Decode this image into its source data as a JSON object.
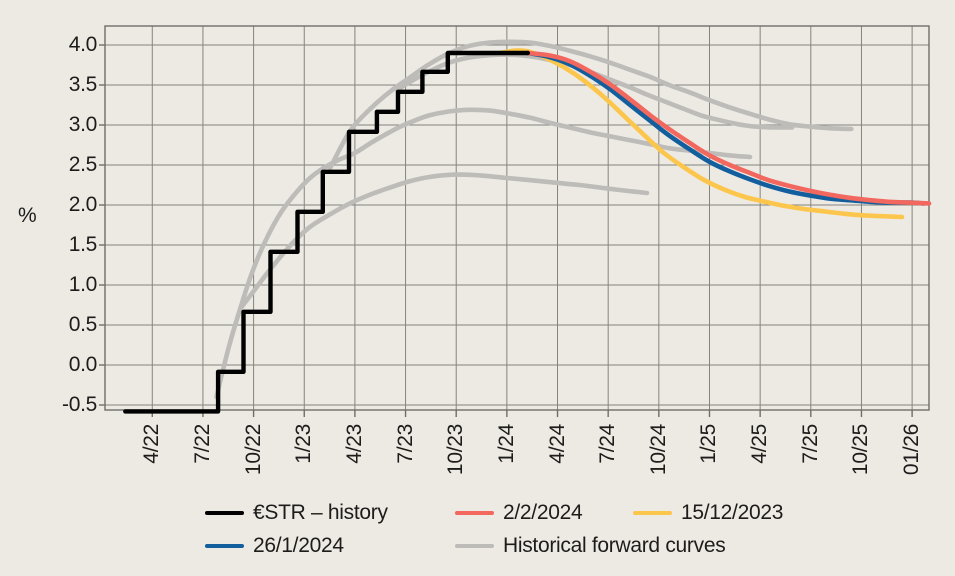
{
  "chart_data": {
    "type": "line",
    "title": "",
    "background_color": "#edeae4",
    "grid_color": "#84837d",
    "border_color": "#6f6e69",
    "grid": true,
    "axes": {
      "x": {
        "range": [
          0.2,
          49.0
        ],
        "unit_note": "months since Jan 2022, quarterly ticks",
        "ticks": [
          {
            "pos": 3,
            "label": "4/22"
          },
          {
            "pos": 6,
            "label": "7/22"
          },
          {
            "pos": 9,
            "label": "10/22"
          },
          {
            "pos": 12,
            "label": "1/23"
          },
          {
            "pos": 15,
            "label": "4/23"
          },
          {
            "pos": 18,
            "label": "7/23"
          },
          {
            "pos": 21,
            "label": "10/23"
          },
          {
            "pos": 24,
            "label": "1/24"
          },
          {
            "pos": 27,
            "label": "4/24"
          },
          {
            "pos": 30,
            "label": "7/24"
          },
          {
            "pos": 33,
            "label": "10/24"
          },
          {
            "pos": 36,
            "label": "1/25"
          },
          {
            "pos": 39,
            "label": "4/25"
          },
          {
            "pos": 42,
            "label": "7/25"
          },
          {
            "pos": 45,
            "label": "10/25"
          },
          {
            "pos": 48,
            "label": "01/26"
          }
        ]
      },
      "y": {
        "range": [
          -0.5625,
          4.2375
        ],
        "unit_label": "%",
        "ticks": [
          {
            "pos": 4.0,
            "label": "4.0"
          },
          {
            "pos": 3.5,
            "label": "3.5"
          },
          {
            "pos": 3.0,
            "label": "3.0"
          },
          {
            "pos": 2.5,
            "label": "2.5"
          },
          {
            "pos": 2.0,
            "label": "2.0"
          },
          {
            "pos": 1.5,
            "label": "1.5"
          },
          {
            "pos": 1.0,
            "label": "1.0"
          },
          {
            "pos": 0.5,
            "label": "0.5"
          },
          {
            "pos": 0.0,
            "label": "0.0"
          },
          {
            "pos": -0.5,
            "label": "-0.5"
          }
        ]
      }
    },
    "series": [
      {
        "name": "Historical forward curve 1",
        "color": "#bdbcb9",
        "stroke_width": 4.6,
        "smooth": true,
        "x": [
          8.2,
          9.1,
          10.0,
          11.2,
          12.3,
          13.5,
          14.7,
          15.9,
          17.1,
          18.3,
          19.4,
          20.9,
          22.4,
          23.9,
          25.4,
          26.8,
          28.3,
          29.8,
          31.0,
          32.3
        ],
        "y": [
          0.7,
          0.95,
          1.2,
          1.5,
          1.72,
          1.88,
          2.02,
          2.13,
          2.22,
          2.3,
          2.35,
          2.38,
          2.37,
          2.34,
          2.31,
          2.28,
          2.25,
          2.21,
          2.18,
          2.15
        ]
      },
      {
        "name": "Historical forward curve 2",
        "color": "#bdbcb9",
        "stroke_width": 4.6,
        "smooth": true,
        "x": [
          6.8,
          7.5,
          8.2,
          8.9,
          9.7,
          10.6,
          11.5,
          12.3,
          13.2,
          14.1,
          15.0,
          15.9,
          16.8,
          17.7,
          18.6,
          19.4,
          20.6,
          21.8,
          23.0,
          24.2,
          25.4,
          26.5,
          27.7,
          28.9,
          30.1,
          31.3,
          32.5,
          33.6,
          34.8,
          36.0,
          37.2,
          38.4
        ],
        "y": [
          -0.4,
          0.2,
          0.7,
          1.15,
          1.55,
          1.9,
          2.15,
          2.33,
          2.47,
          2.57,
          2.65,
          2.77,
          2.88,
          2.98,
          3.06,
          3.12,
          3.17,
          3.19,
          3.18,
          3.14,
          3.09,
          3.03,
          2.97,
          2.91,
          2.86,
          2.81,
          2.76,
          2.71,
          2.68,
          2.65,
          2.62,
          2.6
        ]
      },
      {
        "name": "Historical forward curve 3",
        "color": "#bdbcb9",
        "stroke_width": 4.6,
        "smooth": true,
        "x": [
          13.5,
          14.7,
          15.9,
          17.1,
          18.3,
          19.4,
          20.6,
          21.8,
          23.0,
          24.2,
          25.4,
          26.5,
          27.7,
          28.9,
          30.1,
          31.3,
          32.5,
          33.6,
          34.8,
          36.0,
          37.2,
          38.4,
          39.5,
          40.7,
          41.9,
          43.1,
          44.4
        ],
        "y": [
          2.45,
          2.92,
          3.2,
          3.42,
          3.6,
          3.76,
          3.9,
          3.99,
          4.03,
          4.04,
          4.03,
          3.99,
          3.93,
          3.86,
          3.78,
          3.69,
          3.6,
          3.5,
          3.41,
          3.31,
          3.22,
          3.14,
          3.07,
          3.01,
          2.98,
          2.96,
          2.95
        ]
      },
      {
        "name": "Historical forward curve 4",
        "color": "#bdbcb9",
        "stroke_width": 4.6,
        "smooth": true,
        "x": [
          17.5,
          18.6,
          19.6,
          20.6,
          21.7,
          22.8,
          23.8,
          24.9,
          25.9,
          27.0,
          28.1,
          29.1,
          30.2,
          31.3,
          32.3,
          33.4,
          34.5,
          35.5,
          36.6,
          37.7,
          38.7,
          39.8,
          40.9
        ],
        "y": [
          3.44,
          3.58,
          3.69,
          3.78,
          3.84,
          3.87,
          3.88,
          3.87,
          3.84,
          3.79,
          3.73,
          3.65,
          3.56,
          3.47,
          3.38,
          3.29,
          3.2,
          3.12,
          3.06,
          3.01,
          2.98,
          2.97,
          2.97
        ]
      },
      {
        "name": "15/12/2023",
        "color": "#fcc64d",
        "stroke_width": 4.6,
        "smooth": true,
        "x": [
          23.6,
          24.5,
          25.24,
          26.2,
          27.4,
          28.6,
          29.8,
          31.0,
          32.2,
          33.3,
          34.5,
          35.7,
          36.9,
          38.1,
          39.3,
          40.4,
          41.6,
          42.8,
          44.0,
          45.2,
          46.3,
          47.4
        ],
        "y": [
          3.9,
          3.93,
          3.92,
          3.85,
          3.72,
          3.55,
          3.34,
          3.1,
          2.86,
          2.65,
          2.47,
          2.31,
          2.19,
          2.1,
          2.04,
          1.99,
          1.95,
          1.92,
          1.89,
          1.87,
          1.86,
          1.85
        ]
      },
      {
        "name": "26/1/2024",
        "color": "#135f9e",
        "stroke_width": 4.6,
        "smooth": true,
        "x": [
          25.24,
          26.5,
          27.7,
          28.9,
          30.1,
          31.3,
          32.5,
          33.6,
          34.8,
          36.0,
          37.2,
          38.4,
          39.5,
          40.7,
          41.9,
          43.1,
          44.3,
          45.5,
          46.6,
          47.8,
          48.7
        ],
        "y": [
          3.9,
          3.85,
          3.76,
          3.62,
          3.45,
          3.25,
          3.05,
          2.87,
          2.7,
          2.54,
          2.42,
          2.32,
          2.24,
          2.17,
          2.12,
          2.08,
          2.06,
          2.04,
          2.03,
          2.03,
          2.02
        ]
      },
      {
        "name": "2/2/2024",
        "color": "#f2675e",
        "stroke_width": 4.6,
        "smooth": true,
        "x": [
          25.24,
          26.5,
          27.7,
          28.9,
          30.1,
          31.3,
          32.5,
          33.6,
          34.8,
          36.0,
          37.2,
          38.4,
          39.5,
          40.7,
          41.9,
          43.1,
          44.3,
          45.5,
          46.6,
          47.8,
          49.0
        ],
        "y": [
          3.9,
          3.87,
          3.8,
          3.67,
          3.51,
          3.32,
          3.12,
          2.95,
          2.78,
          2.62,
          2.5,
          2.4,
          2.31,
          2.24,
          2.18,
          2.13,
          2.09,
          2.06,
          2.04,
          2.03,
          2.02
        ]
      },
      {
        "name": "€STR – history",
        "color": "#000000",
        "stroke_width": 4.4,
        "smooth": false,
        "x": [
          1.4,
          6.9,
          6.9,
          8.4,
          8.4,
          10.0,
          10.0,
          11.6,
          11.6,
          13.1,
          13.1,
          14.65,
          14.65,
          16.3,
          16.3,
          17.55,
          17.55,
          19.0,
          19.0,
          20.5,
          20.5,
          25.24
        ],
        "y": [
          -0.58,
          -0.58,
          -0.085,
          -0.085,
          0.665,
          0.665,
          1.415,
          1.415,
          1.915,
          1.915,
          2.415,
          2.415,
          2.915,
          2.915,
          3.165,
          3.165,
          3.415,
          3.415,
          3.665,
          3.665,
          3.9,
          3.9
        ]
      }
    ],
    "legend": {
      "items": [
        {
          "label": "€STR – history",
          "color": "#000000"
        },
        {
          "label": "2/2/2024",
          "color": "#f2675e"
        },
        {
          "label": "15/12/2023",
          "color": "#fcc64d"
        },
        {
          "label": "26/1/2024",
          "color": "#135f9e"
        },
        {
          "label": "Historical forward curves",
          "color": "#bdbcb9"
        }
      ]
    }
  }
}
